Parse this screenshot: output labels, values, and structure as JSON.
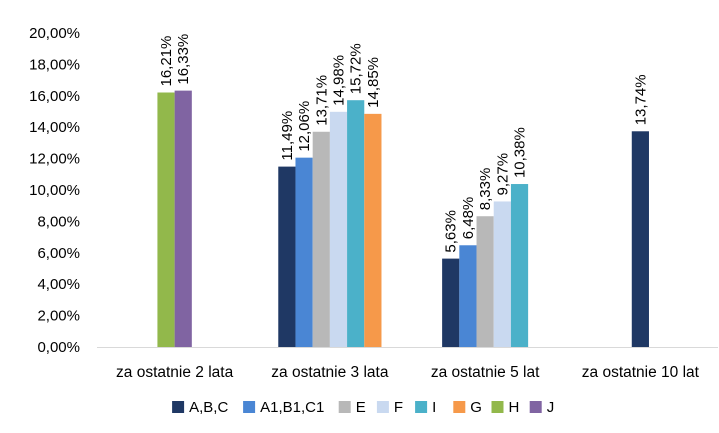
{
  "chart_data": {
    "type": "bar",
    "categories": [
      "za ostatnie 2 lata",
      "za ostatnie 3 lata",
      "za ostatnie 5 lat",
      "za ostatnie 10 lat"
    ],
    "ylim": [
      0,
      20
    ],
    "ytick_labels": [
      "0,00%",
      "2,00%",
      "4,00%",
      "6,00%",
      "8,00%",
      "10,00%",
      "12,00%",
      "14,00%",
      "16,00%",
      "18,00%",
      "20,00%"
    ],
    "grid": false,
    "legend_position": "bottom",
    "series": [
      {
        "name": "A,B,C",
        "color": "#1f3864",
        "values": [
          null,
          11.49,
          5.63,
          13.74
        ],
        "labels": [
          null,
          "11,49%",
          "5,63%",
          "13,74%"
        ]
      },
      {
        "name": "A1,B1,C1",
        "color": "#4a86d4",
        "values": [
          null,
          12.06,
          6.48,
          null
        ],
        "labels": [
          null,
          "12,06%",
          "6,48%",
          null
        ]
      },
      {
        "name": "E",
        "color": "#b8b8b8",
        "values": [
          null,
          13.71,
          8.33,
          null
        ],
        "labels": [
          null,
          "13,71%",
          "8,33%",
          null
        ]
      },
      {
        "name": "F",
        "color": "#c9d9f0",
        "values": [
          null,
          14.98,
          9.27,
          null
        ],
        "labels": [
          null,
          "14,98%",
          "9,27%",
          null
        ]
      },
      {
        "name": "I",
        "color": "#4bb1c9",
        "values": [
          null,
          15.72,
          10.38,
          null
        ],
        "labels": [
          null,
          "15,72%",
          "10,38%",
          null
        ]
      },
      {
        "name": "G",
        "color": "#f6994a",
        "values": [
          null,
          14.85,
          null,
          null
        ],
        "labels": [
          null,
          "14,85%",
          null,
          null
        ]
      },
      {
        "name": "H",
        "color": "#92b84b",
        "values": [
          16.21,
          null,
          null,
          null
        ],
        "labels": [
          "16,21%",
          null,
          null,
          null
        ]
      },
      {
        "name": "J",
        "color": "#8064a2",
        "values": [
          16.33,
          null,
          null,
          null
        ],
        "labels": [
          "16,33%",
          null,
          null,
          null
        ]
      }
    ]
  }
}
